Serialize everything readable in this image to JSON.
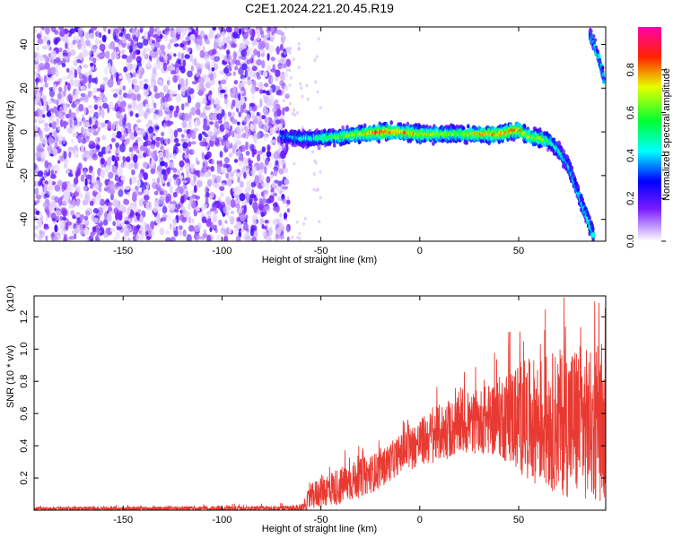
{
  "title": "C2E1.2024.221.20.45.R19",
  "chart_data": [
    {
      "type": "heatmap",
      "xlabel": "Height of straight line (km)",
      "ylabel": "Frequency (Hz)",
      "xlim": [
        -195,
        94
      ],
      "ylim": [
        -50,
        48
      ],
      "xticks": [
        -150,
        -100,
        -50,
        0,
        50
      ],
      "yticks": [
        -40,
        -20,
        0,
        20,
        40
      ],
      "colorbar": {
        "label": "Normalized spectral amplitude",
        "range": [
          0.0,
          1.0
        ],
        "ticks": [
          "0.0",
          "0.2",
          "0.4",
          "0.6",
          "0.8"
        ]
      },
      "noise_region_x": [
        -195,
        -70
      ],
      "ridge": {
        "x": [
          -70,
          -60,
          -50,
          -40,
          -30,
          -20,
          -10,
          0,
          10,
          20,
          30,
          40,
          50,
          55,
          60,
          65,
          70,
          75,
          80,
          85,
          88
        ],
        "y": [
          -2,
          -3,
          -3,
          -2,
          -1,
          0,
          0,
          -1,
          -1,
          -1,
          -1,
          -1,
          1,
          -2,
          -3,
          -4,
          -8,
          -15,
          -28,
          -40,
          -48
        ],
        "peak_amplitude": [
          0.35,
          0.45,
          0.55,
          0.65,
          0.75,
          0.95,
          0.85,
          0.8,
          0.7,
          0.7,
          0.8,
          0.85,
          0.9,
          0.7,
          0.75,
          0.6,
          0.5,
          0.45,
          0.45,
          0.55,
          0.5
        ]
      },
      "upper_right_feature": {
        "x": [
          86,
          90,
          93
        ],
        "y": [
          45,
          35,
          25
        ]
      }
    },
    {
      "type": "line",
      "xlabel": "Height of straight line (km)",
      "ylabel": "SNR (10 * v/v)",
      "y_multiplier": "(x10⁴)",
      "xlim": [
        -195,
        94
      ],
      "ylim": [
        0,
        1.33
      ],
      "xticks": [
        -150,
        -100,
        -50,
        0,
        50
      ],
      "yticks": [
        0.2,
        0.4,
        0.6,
        0.8,
        1.0,
        1.2
      ],
      "color": "#e83a32",
      "envelope": {
        "x": [
          -195,
          -60,
          -55,
          -50,
          -40,
          -30,
          -20,
          -10,
          0,
          10,
          20,
          30,
          40,
          50,
          60,
          70,
          80,
          90,
          94
        ],
        "mean": [
          0.01,
          0.01,
          0.08,
          0.12,
          0.15,
          0.2,
          0.25,
          0.35,
          0.42,
          0.48,
          0.52,
          0.55,
          0.58,
          0.58,
          0.55,
          0.55,
          0.55,
          0.5,
          0.5
        ],
        "spread": [
          0.01,
          0.02,
          0.08,
          0.1,
          0.12,
          0.12,
          0.12,
          0.12,
          0.15,
          0.18,
          0.18,
          0.2,
          0.25,
          0.35,
          0.4,
          0.45,
          0.5,
          0.45,
          0.45
        ]
      },
      "max_value": 1.32
    }
  ]
}
